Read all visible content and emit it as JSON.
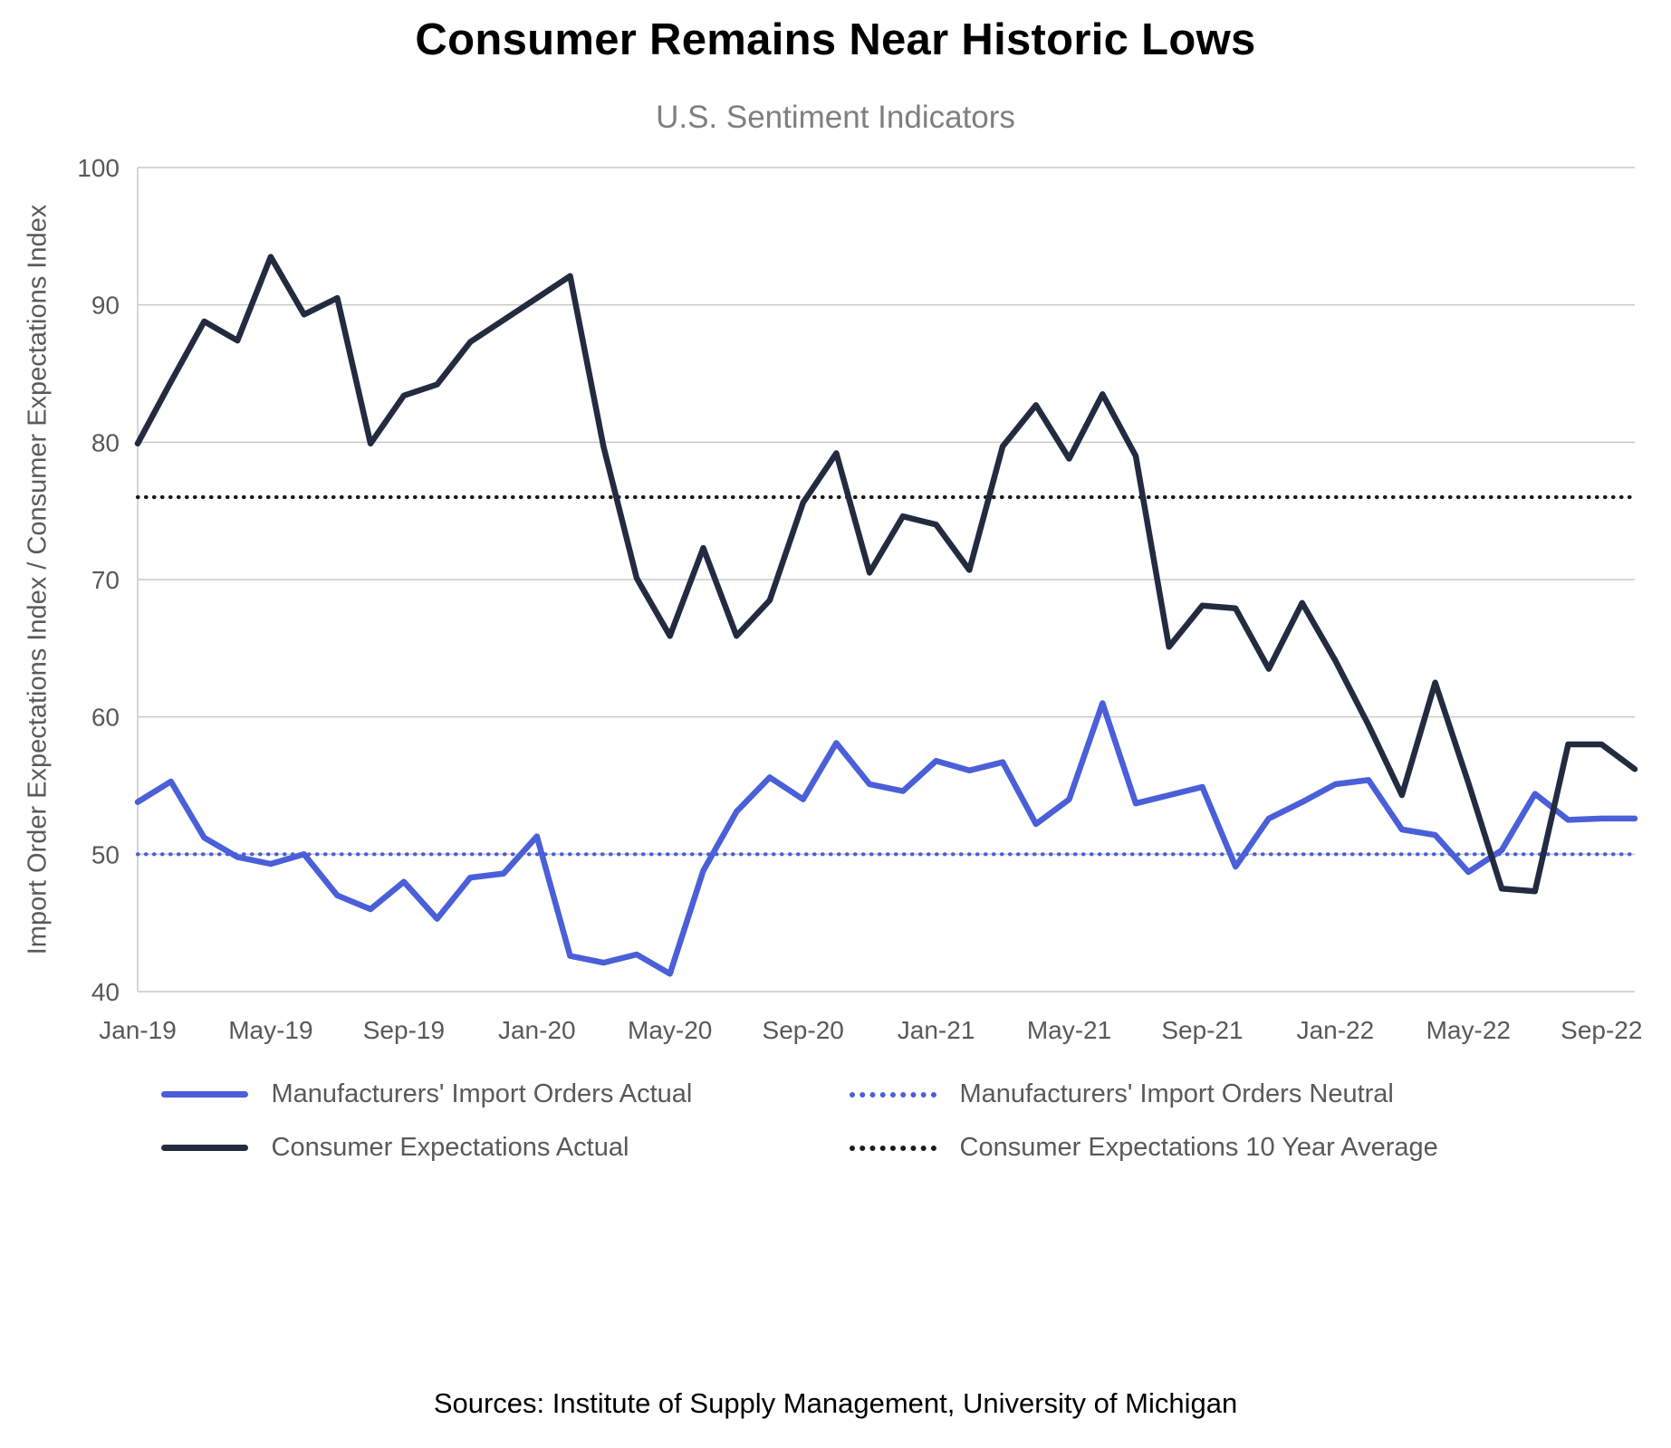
{
  "title": "Consumer Remains Near Historic Lows",
  "subtitle": "U.S. Sentiment Indicators",
  "sources": "Sources: Institute of Supply Management, University of Michigan",
  "colors": {
    "import_orders_blue": "#4a5fd8",
    "consumer_navy": "#232b40",
    "gridline": "#c9c9c9",
    "axis_text": "#595959"
  },
  "legend": {
    "items": [
      {
        "label": "Manufacturers' Import Orders Actual",
        "color": "#4a5fd8",
        "dash": "solid"
      },
      {
        "label": "Manufacturers' Import Orders Neutral",
        "color": "#4a5fd8",
        "dash": "dotted"
      },
      {
        "label": "Consumer Expectations Actual",
        "color": "#232b40",
        "dash": "solid"
      },
      {
        "label": "Consumer Expectations 10 Year Average",
        "color": "#1a1a1a",
        "dash": "dotted"
      }
    ]
  },
  "chart_data": {
    "type": "line",
    "title": "Consumer Remains Near Historic Lows",
    "subtitle": "U.S. Sentiment Indicators",
    "xlabel": "",
    "ylabel": "Import Order Expectations Index / Consumer Expectations Index",
    "ylim": [
      40,
      100
    ],
    "y_ticks": [
      40,
      50,
      60,
      70,
      80,
      90,
      100
    ],
    "grid": true,
    "legend_position": "bottom",
    "x_tick_labels": [
      "Jan-19",
      "May-19",
      "Sep-19",
      "Jan-20",
      "May-20",
      "Sep-20",
      "Jan-21",
      "May-21",
      "Sep-21",
      "Jan-22",
      "May-22",
      "Sep-22"
    ],
    "x_tick_every": 4,
    "months": [
      "Jan-19",
      "Feb-19",
      "Mar-19",
      "Apr-19",
      "May-19",
      "Jun-19",
      "Jul-19",
      "Aug-19",
      "Sep-19",
      "Oct-19",
      "Nov-19",
      "Dec-19",
      "Jan-20",
      "Feb-20",
      "Mar-20",
      "Apr-20",
      "May-20",
      "Jun-20",
      "Jul-20",
      "Aug-20",
      "Sep-20",
      "Oct-20",
      "Nov-20",
      "Dec-20",
      "Jan-21",
      "Feb-21",
      "Mar-21",
      "Apr-21",
      "May-21",
      "Jun-21",
      "Jul-21",
      "Aug-21",
      "Sep-21",
      "Oct-21",
      "Nov-21",
      "Dec-21",
      "Jan-22",
      "Feb-22",
      "Mar-22",
      "Apr-22",
      "May-22",
      "Jun-22",
      "Jul-22",
      "Aug-22",
      "Sep-22",
      "Oct-22"
    ],
    "series": [
      {
        "name": "Manufacturers' Import Orders Actual",
        "color": "#4a5fd8",
        "style": "solid",
        "values": [
          53.8,
          55.3,
          51.2,
          49.8,
          49.3,
          50.0,
          47.0,
          46.0,
          48.0,
          45.3,
          48.3,
          48.6,
          51.3,
          42.6,
          42.1,
          42.7,
          41.3,
          48.8,
          53.1,
          55.6,
          54.0,
          58.1,
          55.1,
          54.6,
          56.8,
          56.1,
          56.7,
          52.2,
          54.0,
          61.0,
          53.7,
          54.3,
          54.9,
          49.1,
          52.6,
          53.8,
          55.1,
          55.4,
          51.8,
          51.4,
          48.7,
          50.3,
          54.4,
          52.5,
          52.6,
          52.6
        ]
      },
      {
        "name": "Consumer Expectations Actual",
        "color": "#232b40",
        "style": "solid",
        "values": [
          79.9,
          84.4,
          88.8,
          87.4,
          93.5,
          89.3,
          90.5,
          79.9,
          83.4,
          84.2,
          87.3,
          88.9,
          90.5,
          92.1,
          79.7,
          70.1,
          65.9,
          72.3,
          65.9,
          68.5,
          75.6,
          79.2,
          70.5,
          74.6,
          74.0,
          70.7,
          79.7,
          82.7,
          78.8,
          83.5,
          79.0,
          65.1,
          68.1,
          67.9,
          63.5,
          68.3,
          64.1,
          59.4,
          54.3,
          62.5,
          55.2,
          47.5,
          47.3,
          58.0,
          58.0,
          56.2
        ]
      }
    ],
    "reference_lines": [
      {
        "name": "Manufacturers' Import Orders Neutral",
        "color": "#4a5fd8",
        "style": "dotted",
        "value": 50
      },
      {
        "name": "Consumer Expectations 10 Year Average",
        "color": "#1a1a1a",
        "style": "dotted",
        "value": 76
      }
    ]
  }
}
